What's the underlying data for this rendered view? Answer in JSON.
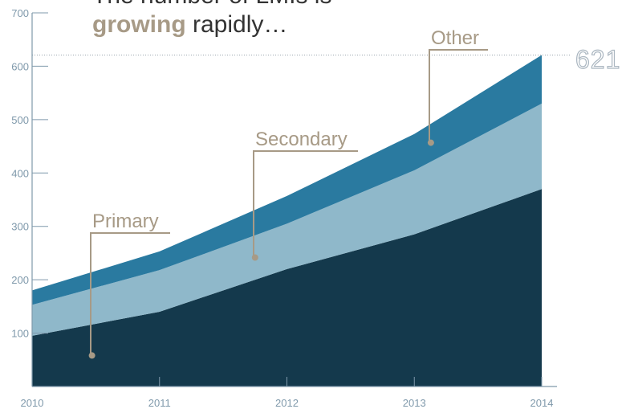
{
  "title": {
    "line1": "The number of LMIs is",
    "emphasis": "growing",
    "rest": " rapidly…"
  },
  "colors": {
    "primary": "#14394c",
    "secondary": "#8fb8ca",
    "other": "#2a7aa0",
    "annotation": "#a79a86",
    "axis": "#7f99ab"
  },
  "chart_data": {
    "type": "area",
    "stacked": true,
    "x": [
      "2010",
      "2011",
      "2012",
      "2013",
      "2014"
    ],
    "series": [
      {
        "name": "Primary",
        "values": [
          95,
          140,
          220,
          285,
          370
        ]
      },
      {
        "name": "Secondary",
        "values": [
          58,
          78,
          85,
          120,
          160
        ]
      },
      {
        "name": "Other",
        "values": [
          27,
          35,
          52,
          68,
          91
        ]
      }
    ],
    "totals": [
      180,
      253,
      357,
      473,
      621
    ],
    "ylim": [
      0,
      700
    ],
    "yticks": [
      "100",
      "200",
      "300",
      "400",
      "500",
      "600",
      "700"
    ],
    "end_value_label": "621",
    "reference_line": 621
  }
}
